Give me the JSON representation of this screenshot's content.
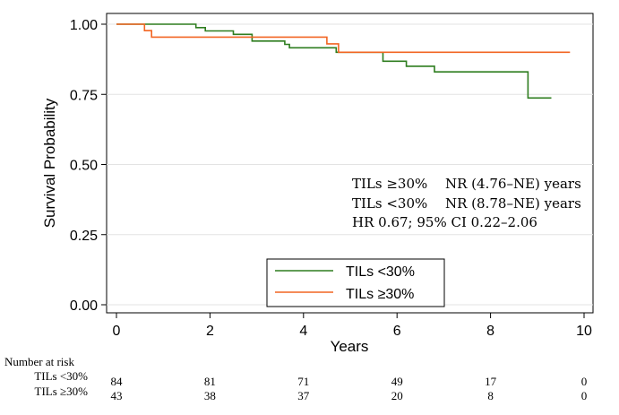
{
  "chart_data": {
    "type": "line",
    "title": "",
    "xlabel": "Years",
    "ylabel": "Survival Probability",
    "xlim": [
      0,
      10
    ],
    "ylim": [
      0,
      1
    ],
    "x_ticks": [
      "0",
      "2",
      "4",
      "6",
      "8",
      "10"
    ],
    "y_ticks": [
      "0.00",
      "0.25",
      "0.50",
      "0.75",
      "1.00"
    ],
    "grid": true,
    "legend_position": "bottom-center",
    "series": [
      {
        "name": "TILs <30%",
        "color": "#2e7d1f",
        "step_points": [
          [
            0,
            1.0
          ],
          [
            1.7,
            1.0
          ],
          [
            1.7,
            0.988
          ],
          [
            1.9,
            0.988
          ],
          [
            1.9,
            0.976
          ],
          [
            2.5,
            0.976
          ],
          [
            2.5,
            0.964
          ],
          [
            2.9,
            0.964
          ],
          [
            2.9,
            0.94
          ],
          [
            3.6,
            0.94
          ],
          [
            3.6,
            0.928
          ],
          [
            3.7,
            0.928
          ],
          [
            3.7,
            0.916
          ],
          [
            4.7,
            0.916
          ],
          [
            4.7,
            0.9
          ],
          [
            5.7,
            0.9
          ],
          [
            5.7,
            0.868
          ],
          [
            6.2,
            0.868
          ],
          [
            6.2,
            0.85
          ],
          [
            6.8,
            0.85
          ],
          [
            6.8,
            0.83
          ],
          [
            8.8,
            0.83
          ],
          [
            8.8,
            0.737
          ],
          [
            9.3,
            0.737
          ]
        ]
      },
      {
        "name": "TILs ≥30%",
        "color": "#f26522",
        "step_points": [
          [
            0,
            1.0
          ],
          [
            0.6,
            1.0
          ],
          [
            0.6,
            0.977
          ],
          [
            0.75,
            0.977
          ],
          [
            0.75,
            0.954
          ],
          [
            4.5,
            0.954
          ],
          [
            4.5,
            0.93
          ],
          [
            4.75,
            0.93
          ],
          [
            4.75,
            0.9
          ],
          [
            9.7,
            0.9
          ]
        ]
      }
    ],
    "annotations": {
      "line1_label": "TILs ≥30%",
      "line1_value": "NR (4.76–NE) years",
      "line2_label": "TILs <30%",
      "line2_value": "NR (8.78–NE) years",
      "line3": "HR 0.67; 95% CI 0.22–2.06"
    },
    "risk_table": {
      "title": "Number at risk",
      "times": [
        0,
        2,
        4,
        6,
        8,
        10
      ],
      "rows": [
        {
          "label": "TILs <30%",
          "counts": [
            "84",
            "81",
            "71",
            "49",
            "17",
            "0"
          ]
        },
        {
          "label": "TILs ≥30%",
          "counts": [
            "43",
            "38",
            "37",
            "20",
            "8",
            "0"
          ]
        }
      ]
    }
  }
}
